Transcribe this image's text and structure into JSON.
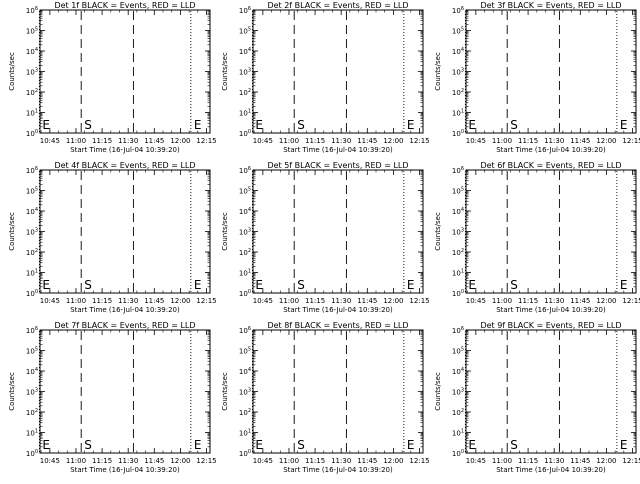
{
  "chart_data": [
    {
      "type": "line",
      "title": "Det 1f BLACK = Events, RED = LLD",
      "ylabel": "Counts/sec",
      "xlabel": "Start Time (16-Jul-04 10:39:20)",
      "x_ticks": [
        "10:45",
        "11:00",
        "11:15",
        "11:30",
        "11:45",
        "12:00",
        "12:15"
      ],
      "y_ticks": [
        "10^0",
        "10^1",
        "10^2",
        "10^3",
        "10^4",
        "10^5",
        "10^6"
      ],
      "ylim": [
        1,
        1000000
      ],
      "y_scale": "log",
      "markers": [
        {
          "time": "10:39",
          "style": "dotted",
          "label": "E"
        },
        {
          "time": "11:03",
          "style": "dashed",
          "label": "S"
        },
        {
          "time": "11:33",
          "style": "dashed",
          "label": ""
        },
        {
          "time": "12:06",
          "style": "dotted",
          "label": "E"
        }
      ],
      "series": []
    },
    {
      "type": "line",
      "title": "Det 2f BLACK = Events, RED = LLD",
      "ylabel": "Counts/sec",
      "xlabel": "Start Time (16-Jul-04 10:39:20)",
      "x_ticks": [
        "10:45",
        "11:00",
        "11:15",
        "11:30",
        "11:45",
        "12:00",
        "12:15"
      ],
      "y_ticks": [
        "10^0",
        "10^1",
        "10^2",
        "10^3",
        "10^4",
        "10^5",
        "10^6"
      ],
      "ylim": [
        1,
        1000000
      ],
      "y_scale": "log",
      "markers": [
        {
          "time": "10:39",
          "style": "dotted",
          "label": "E"
        },
        {
          "time": "11:03",
          "style": "dashed",
          "label": "S"
        },
        {
          "time": "11:33",
          "style": "dashed",
          "label": ""
        },
        {
          "time": "12:06",
          "style": "dotted",
          "label": "E"
        }
      ],
      "series": []
    },
    {
      "type": "line",
      "title": "Det 3f BLACK = Events, RED = LLD",
      "ylabel": "Counts/sec",
      "xlabel": "Start Time (16-Jul-04 10:39:20)",
      "x_ticks": [
        "10:45",
        "11:00",
        "11:15",
        "11:30",
        "11:45",
        "12:00",
        "12:15"
      ],
      "y_ticks": [
        "10^0",
        "10^1",
        "10^2",
        "10^3",
        "10^4",
        "10^5",
        "10^6"
      ],
      "ylim": [
        1,
        1000000
      ],
      "y_scale": "log",
      "markers": [
        {
          "time": "10:39",
          "style": "dotted",
          "label": "E"
        },
        {
          "time": "11:03",
          "style": "dashed",
          "label": "S"
        },
        {
          "time": "11:33",
          "style": "dashed",
          "label": ""
        },
        {
          "time": "12:06",
          "style": "dotted",
          "label": "E"
        }
      ],
      "series": []
    },
    {
      "type": "line",
      "title": "Det 4f BLACK = Events, RED = LLD",
      "ylabel": "Counts/sec",
      "xlabel": "Start Time (16-Jul-04 10:39:20)",
      "x_ticks": [
        "10:45",
        "11:00",
        "11:15",
        "11:30",
        "11:45",
        "12:00",
        "12:15"
      ],
      "y_ticks": [
        "10^0",
        "10^1",
        "10^2",
        "10^3",
        "10^4",
        "10^5",
        "10^6"
      ],
      "ylim": [
        1,
        1000000
      ],
      "y_scale": "log",
      "markers": [
        {
          "time": "10:39",
          "style": "dotted",
          "label": "E"
        },
        {
          "time": "11:03",
          "style": "dashed",
          "label": "S"
        },
        {
          "time": "11:33",
          "style": "dashed",
          "label": ""
        },
        {
          "time": "12:06",
          "style": "dotted",
          "label": "E"
        }
      ],
      "series": []
    },
    {
      "type": "line",
      "title": "Det 5f BLACK = Events, RED = LLD",
      "ylabel": "Counts/sec",
      "xlabel": "Start Time (16-Jul-04 10:39:20)",
      "x_ticks": [
        "10:45",
        "11:00",
        "11:15",
        "11:30",
        "11:45",
        "12:00",
        "12:15"
      ],
      "y_ticks": [
        "10^0",
        "10^1",
        "10^2",
        "10^3",
        "10^4",
        "10^5",
        "10^6"
      ],
      "ylim": [
        1,
        1000000
      ],
      "y_scale": "log",
      "markers": [
        {
          "time": "10:39",
          "style": "dotted",
          "label": "E"
        },
        {
          "time": "11:03",
          "style": "dashed",
          "label": "S"
        },
        {
          "time": "11:33",
          "style": "dashed",
          "label": ""
        },
        {
          "time": "12:06",
          "style": "dotted",
          "label": "E"
        }
      ],
      "series": []
    },
    {
      "type": "line",
      "title": "Det 6f BLACK = Events, RED = LLD",
      "ylabel": "Counts/sec",
      "xlabel": "Start Time (16-Jul-04 10:39:20)",
      "x_ticks": [
        "10:45",
        "11:00",
        "11:15",
        "11:30",
        "11:45",
        "12:00",
        "12:15"
      ],
      "y_ticks": [
        "10^0",
        "10^1",
        "10^2",
        "10^3",
        "10^4",
        "10^5",
        "10^6"
      ],
      "ylim": [
        1,
        1000000
      ],
      "y_scale": "log",
      "markers": [
        {
          "time": "10:39",
          "style": "dotted",
          "label": "E"
        },
        {
          "time": "11:03",
          "style": "dashed",
          "label": "S"
        },
        {
          "time": "11:33",
          "style": "dashed",
          "label": ""
        },
        {
          "time": "12:06",
          "style": "dotted",
          "label": "E"
        }
      ],
      "series": []
    },
    {
      "type": "line",
      "title": "Det 7f BLACK = Events, RED = LLD",
      "ylabel": "Counts/sec",
      "xlabel": "Start Time (16-Jul-04 10:39:20)",
      "x_ticks": [
        "10:45",
        "11:00",
        "11:15",
        "11:30",
        "11:45",
        "12:00",
        "12:15"
      ],
      "y_ticks": [
        "10^0",
        "10^1",
        "10^2",
        "10^3",
        "10^4",
        "10^5",
        "10^6"
      ],
      "ylim": [
        1,
        1000000
      ],
      "y_scale": "log",
      "markers": [
        {
          "time": "10:39",
          "style": "dotted",
          "label": "E"
        },
        {
          "time": "11:03",
          "style": "dashed",
          "label": "S"
        },
        {
          "time": "11:33",
          "style": "dashed",
          "label": ""
        },
        {
          "time": "12:06",
          "style": "dotted",
          "label": "E"
        }
      ],
      "series": []
    },
    {
      "type": "line",
      "title": "Det 8f BLACK = Events, RED = LLD",
      "ylabel": "Counts/sec",
      "xlabel": "Start Time (16-Jul-04 10:39:20)",
      "x_ticks": [
        "10:45",
        "11:00",
        "11:15",
        "11:30",
        "11:45",
        "12:00",
        "12:15"
      ],
      "y_ticks": [
        "10^0",
        "10^1",
        "10^2",
        "10^3",
        "10^4",
        "10^5",
        "10^6"
      ],
      "ylim": [
        1,
        1000000
      ],
      "y_scale": "log",
      "markers": [
        {
          "time": "10:39",
          "style": "dotted",
          "label": "E"
        },
        {
          "time": "11:03",
          "style": "dashed",
          "label": "S"
        },
        {
          "time": "11:33",
          "style": "dashed",
          "label": ""
        },
        {
          "time": "12:06",
          "style": "dotted",
          "label": "E"
        }
      ],
      "series": []
    },
    {
      "type": "line",
      "title": "Det 9f BLACK = Events, RED = LLD",
      "ylabel": "Counts/sec",
      "xlabel": "Start Time (16-Jul-04 10:39:20)",
      "x_ticks": [
        "10:45",
        "11:00",
        "11:15",
        "11:30",
        "11:45",
        "12:00",
        "12:15"
      ],
      "y_ticks": [
        "10^0",
        "10^1",
        "10^2",
        "10^3",
        "10^4",
        "10^5",
        "10^6"
      ],
      "ylim": [
        1,
        1000000
      ],
      "y_scale": "log",
      "markers": [
        {
          "time": "10:39",
          "style": "dotted",
          "label": "E"
        },
        {
          "time": "11:03",
          "style": "dashed",
          "label": "S"
        },
        {
          "time": "11:33",
          "style": "dashed",
          "label": ""
        },
        {
          "time": "12:06",
          "style": "dotted",
          "label": "E"
        }
      ],
      "series": []
    }
  ]
}
